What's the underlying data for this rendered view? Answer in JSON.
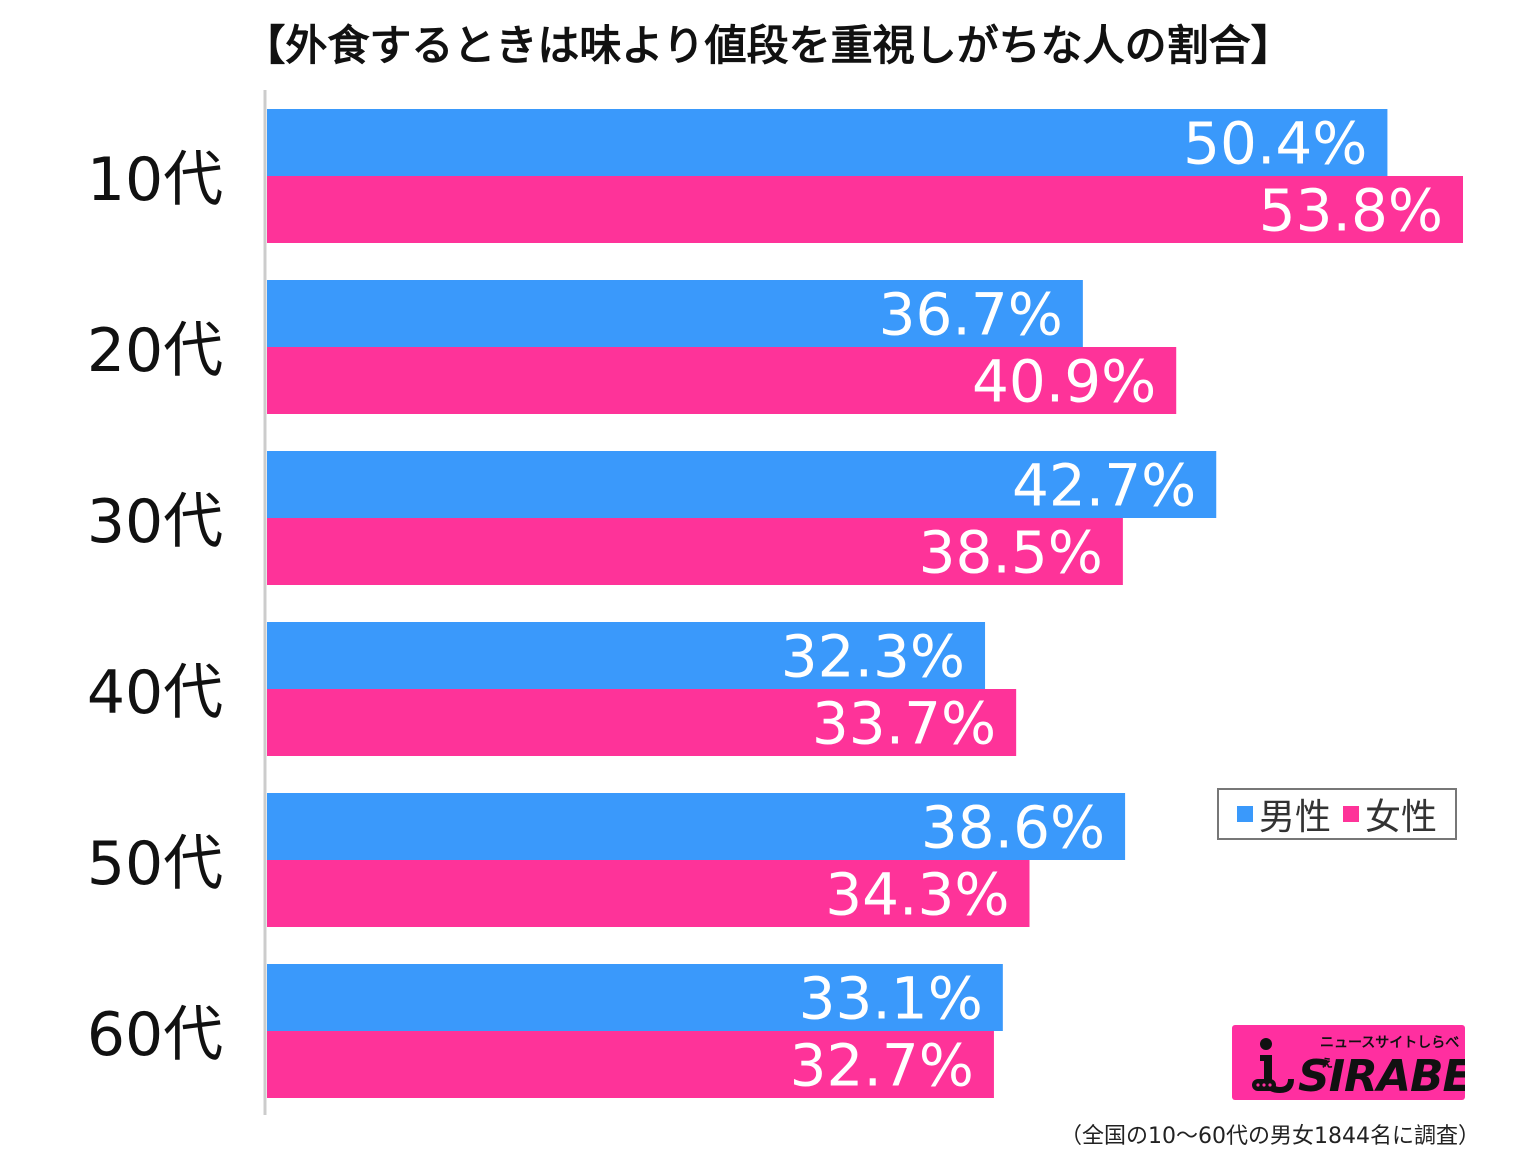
{
  "title": "【外食するときは味より値段を重視しがちな人の割合】",
  "legend": {
    "male_label": "男性",
    "female_label": "女性"
  },
  "logo": {
    "tagline": "ニュースサイトしらべぇ",
    "wordmark": "SIRABEE"
  },
  "footnote": "（全国の10〜60代の男女1844名に調査）",
  "colors": {
    "male": "#3a99fb",
    "female": "#fe3399",
    "axis": "#cccccc",
    "label_text": "#ffffff"
  },
  "chart_data": {
    "type": "bar",
    "orientation": "horizontal",
    "title": "【外食するときは味より値段を重視しがちな人の割合】",
    "categories": [
      "10代",
      "20代",
      "30代",
      "40代",
      "50代",
      "60代"
    ],
    "series": [
      {
        "name": "男性",
        "values": [
          50.4,
          36.7,
          42.7,
          32.3,
          38.6,
          33.1
        ]
      },
      {
        "name": "女性",
        "values": [
          53.8,
          40.9,
          38.5,
          33.7,
          34.3,
          32.7
        ]
      }
    ],
    "value_suffix": "%",
    "xlim": [
      0,
      54
    ],
    "grid": false,
    "legend_position": "bottom-right"
  }
}
